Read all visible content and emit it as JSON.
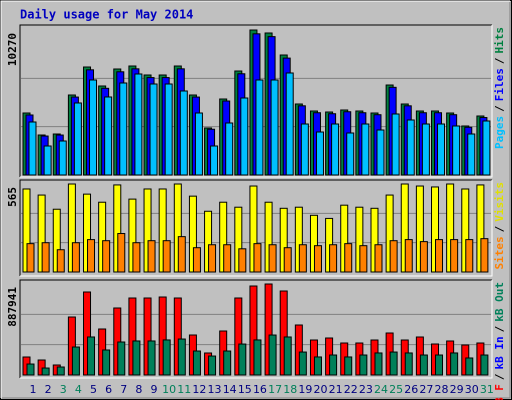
{
  "chart_data": [
    {
      "type": "bar",
      "title": "Daily usage for May 2014",
      "ylim": [
        0,
        10270
      ],
      "yticks": [
        10270
      ],
      "legend_separator": "/",
      "legend": [
        {
          "name": "Pages",
          "color": "#00c0ff"
        },
        {
          "name": "Files",
          "color": "#0000ff"
        },
        {
          "name": "Hits",
          "color": "#008040"
        }
      ],
      "series": [
        {
          "color": "#008040",
          "values": [
            4391,
            2833,
            2904,
            5666,
            7649,
            6304,
            7508,
            7720,
            7083,
            7083,
            7720,
            5666,
            3329,
            5383,
            7366,
            10270,
            10058,
            8499,
            5029,
            4533,
            4462,
            4604,
            4533,
            4391,
            6374,
            5029,
            4533,
            4533,
            4391,
            3471,
            4179
          ]
        },
        {
          "color": "#0000ff",
          "values": [
            4250,
            2760,
            2830,
            5520,
            7450,
            6140,
            7310,
            7520,
            6900,
            6900,
            7520,
            5520,
            3240,
            5240,
            7170,
            10000,
            9800,
            8280,
            4900,
            4410,
            4340,
            4480,
            4410,
            4270,
            6210,
            4900,
            4410,
            4410,
            4270,
            3380,
            4070
          ]
        },
        {
          "color": "#00c0ff",
          "values": [
            3754,
            2054,
            2408,
            5100,
            6729,
            5525,
            6516,
            7154,
            6445,
            6445,
            5950,
            4391,
            2054,
            3683,
            5454,
            6729,
            6729,
            7225,
            3612,
            3045,
            3612,
            2975,
            3612,
            3187,
            4321,
            3896,
            3612,
            3612,
            3471,
            2904,
            3825
          ]
        }
      ]
    },
    {
      "type": "bar",
      "ylim": [
        0,
        565
      ],
      "yticks": [
        565
      ],
      "legend_separator": "/",
      "legend": [
        {
          "name": "Sites",
          "color": "#ff8000"
        },
        {
          "name": "Visits",
          "color": "#e0e000"
        }
      ],
      "series": [
        {
          "color": "#ffff00",
          "values": [
            533,
            494,
            403,
            565,
            500,
            448,
            559,
            468,
            533,
            533,
            565,
            487,
            390,
            448,
            416,
            552,
            448,
            409,
            416,
            364,
            344,
            429,
            416,
            409,
            494,
            565,
            552,
            546,
            565,
            533,
            559
          ]
        },
        {
          "color": "#ff8000",
          "values": [
            182,
            188,
            143,
            188,
            208,
            201,
            247,
            188,
            201,
            201,
            227,
            156,
            175,
            175,
            149,
            182,
            175,
            156,
            175,
            169,
            175,
            182,
            169,
            175,
            201,
            208,
            195,
            208,
            208,
            208,
            214
          ]
        }
      ]
    },
    {
      "type": "bar",
      "ylim": [
        0,
        887941
      ],
      "yticks": [
        887941
      ],
      "legend_separator": "/",
      "legend": [
        {
          "name": "kB F",
          "color": "#ff0000"
        },
        {
          "name": "kB In",
          "color": "#0000ff"
        },
        {
          "name": "kB Out",
          "color": "#00805a"
        }
      ],
      "series": [
        {
          "color": "#ff0000",
          "values": [
            175600,
            146400,
            97600,
            565900,
            809900,
            448900,
            653800,
            751300,
            751300,
            761100,
            751300,
            390300,
            214700,
            429300,
            751300,
            868400,
            887941,
            819600,
            487900,
            341500,
            361000,
            312200,
            312200,
            341500,
            409800,
            341500,
            370800,
            302500,
            331800,
            292700,
            312200
          ]
        },
        {
          "color": "#00805a",
          "values": [
            107000,
            68000,
            78000,
            273000,
            371000,
            244000,
            322000,
            332000,
            332000,
            342000,
            351000,
            234000,
            185000,
            234000,
            302000,
            342000,
            390000,
            371000,
            224000,
            176000,
            195000,
            176000,
            195000,
            215000,
            224000,
            215000,
            195000,
            195000,
            215000,
            166000,
            195000
          ]
        }
      ],
      "categories": [
        "1",
        "2",
        "3",
        "4",
        "5",
        "6",
        "7",
        "8",
        "9",
        "10",
        "11",
        "12",
        "13",
        "14",
        "15",
        "16",
        "17",
        "18",
        "19",
        "20",
        "21",
        "22",
        "23",
        "24",
        "25",
        "26",
        "27",
        "28",
        "29",
        "30",
        "31"
      ],
      "weekend_indices": [
        2,
        3,
        9,
        10,
        16,
        17,
        23,
        24,
        30
      ],
      "weekday_color": "#000080",
      "weekend_color": "#00805a"
    }
  ]
}
